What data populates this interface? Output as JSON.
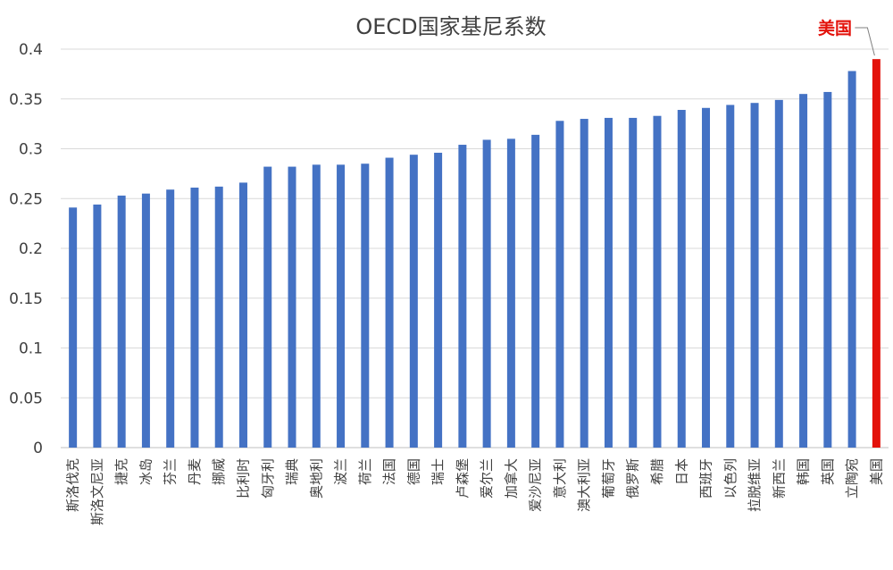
{
  "chart_data": {
    "type": "bar",
    "title": "OECD国家基尼系数",
    "xlabel": "",
    "ylabel": "",
    "ylim": [
      0,
      0.4
    ],
    "yticks": [
      "0",
      "0.05",
      "0.1",
      "0.15",
      "0.2",
      "0.25",
      "0.3",
      "0.35",
      "0.4"
    ],
    "grid": true,
    "categories": [
      "斯洛伐克",
      "斯洛文尼亚",
      "捷克",
      "冰岛",
      "芬兰",
      "丹麦",
      "挪威",
      "比利时",
      "匈牙利",
      "瑞典",
      "奥地利",
      "波兰",
      "荷兰",
      "法国",
      "德国",
      "瑞士",
      "卢森堡",
      "爱尔兰",
      "加拿大",
      "爱沙尼亚",
      "意大利",
      "澳大利亚",
      "葡萄牙",
      "俄罗斯",
      "希腊",
      "日本",
      "西班牙",
      "以色列",
      "拉脱维亚",
      "新西兰",
      "韩国",
      "英国",
      "立陶宛",
      "美国"
    ],
    "values": [
      0.241,
      0.244,
      0.253,
      0.255,
      0.259,
      0.261,
      0.262,
      0.266,
      0.282,
      0.282,
      0.284,
      0.284,
      0.285,
      0.291,
      0.294,
      0.296,
      0.304,
      0.309,
      0.31,
      0.314,
      0.328,
      0.33,
      0.331,
      0.331,
      0.333,
      0.339,
      0.341,
      0.344,
      0.346,
      0.349,
      0.355,
      0.357,
      0.378,
      0.39
    ],
    "highlight_index": 33,
    "annotation": "美国",
    "colors": {
      "bar": "#4472c4",
      "highlight": "#e3120b",
      "grid": "#d9d9d9",
      "text": "#404040"
    }
  }
}
